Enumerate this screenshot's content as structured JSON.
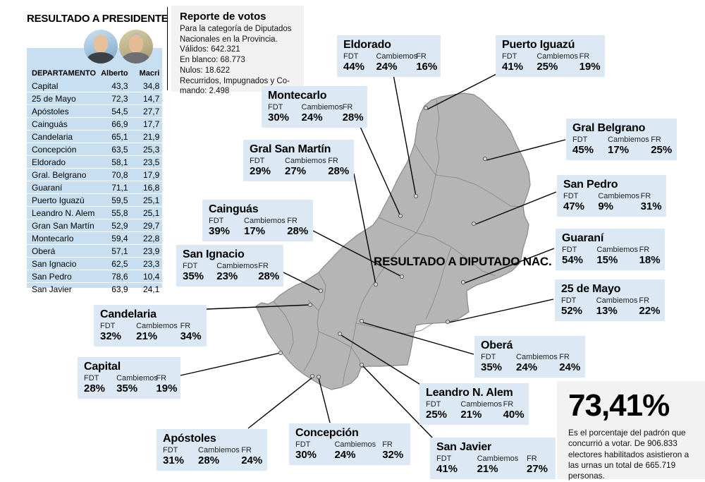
{
  "colors": {
    "table_blue": "#c7dff0",
    "callout_blue": "#dce9f5",
    "gray_box": "#f2f2f2",
    "map_fill": "#b5b5b5",
    "map_border": "#8a8a8a"
  },
  "president_panel": {
    "title": "RESULTADO A PRESIDENTE",
    "table": {
      "headers": [
        "DEPARTAMENTO",
        "Alberto",
        "Macri"
      ],
      "rows": [
        [
          "Capital",
          "43,3",
          "34,8"
        ],
        [
          "25 de Mayo",
          "72,3",
          "14,7"
        ],
        [
          "Apóstoles",
          "54,5",
          "27,7"
        ],
        [
          "Cainguás",
          "66,9",
          "17,7"
        ],
        [
          "Candelaria",
          "65,1",
          "21,9"
        ],
        [
          "Concepción",
          "63,5",
          "25,3"
        ],
        [
          "Eldorado",
          "58,1",
          "23,5"
        ],
        [
          "Gral. Belgrano",
          "70,8",
          "17,9"
        ],
        [
          "Guaraní",
          "71,1",
          "16,8"
        ],
        [
          "Puerto Iguazú",
          "59,5",
          "25,1"
        ],
        [
          "Leandro N. Alem",
          "55,8",
          "25,1"
        ],
        [
          "Gran San Martín",
          "52,9",
          "29,7"
        ],
        [
          "Montecarlo",
          "59,4",
          "22,8"
        ],
        [
          "Oberá",
          "57,1",
          "23,9"
        ],
        [
          "San Ignacio",
          "62,5",
          "23,3"
        ],
        [
          "San Pedro",
          "78,6",
          "10,4"
        ],
        [
          "San Javier",
          "63,9",
          "24,1"
        ]
      ]
    }
  },
  "report_box": {
    "title": "Reporte de votos",
    "lines": [
      "Para la categoría de Diputados",
      "Nacionales en la Provincia.",
      "Válidos: 642.321",
      "En blanco: 68.773",
      "Nulos: 18.622",
      "Recurridos, Impugnados y Co-",
      "mando: 2.498"
    ]
  },
  "map": {
    "center_label": "RESULTADO A DIPUTADO NAC."
  },
  "party_labels": {
    "fdt": "FDT",
    "cambiemos": "Cambiemos",
    "fr": "FR"
  },
  "callouts": {
    "eldorado": {
      "name": "Eldorado",
      "fdt": "44%",
      "cambiemos": "24%",
      "fr": "16%"
    },
    "puerto_iguazu": {
      "name": "Puerto Iguazú",
      "fdt": "41%",
      "cambiemos": "25%",
      "fr": "19%"
    },
    "montecarlo": {
      "name": "Montecarlo",
      "fdt": "30%",
      "cambiemos": "24%",
      "fr": "28%"
    },
    "gral_san_martin": {
      "name": "Gral San Martín",
      "fdt": "29%",
      "cambiemos": "27%",
      "fr": "28%"
    },
    "cainguas": {
      "name": "Cainguás",
      "fdt": "39%",
      "cambiemos": "17%",
      "fr": "28%"
    },
    "san_ignacio": {
      "name": "San Ignacio",
      "fdt": "35%",
      "cambiemos": "23%",
      "fr": "28%"
    },
    "candelaria": {
      "name": "Candelaria",
      "fdt": "32%",
      "cambiemos": "21%",
      "fr": "34%"
    },
    "capital": {
      "name": "Capital",
      "fdt": "28%",
      "cambiemos": "35%",
      "fr": "19%"
    },
    "apostoles": {
      "name": "Apóstoles",
      "fdt": "31%",
      "cambiemos": "28%",
      "fr": "24%"
    },
    "concepcion": {
      "name": "Concepción",
      "fdt": "30%",
      "cambiemos": "24%",
      "fr": "32%"
    },
    "obera": {
      "name": "Oberá",
      "fdt": "35%",
      "cambiemos": "24%",
      "fr": "24%"
    },
    "leandro": {
      "name": "Leandro N. Alem",
      "fdt": "25%",
      "cambiemos": "21%",
      "fr": "40%"
    },
    "san_javier": {
      "name": "San Javier",
      "fdt": "41%",
      "cambiemos": "21%",
      "fr": "27%"
    },
    "gral_belgrano": {
      "name": "Gral Belgrano",
      "fdt": "45%",
      "cambiemos": "17%",
      "fr": "25%"
    },
    "san_pedro": {
      "name": "San Pedro",
      "fdt": "47%",
      "cambiemos": "9%",
      "fr": "31%"
    },
    "guarani": {
      "name": "Guaraní",
      "fdt": "54%",
      "cambiemos": "15%",
      "fr": "18%"
    },
    "mayo25": {
      "name": "25 de Mayo",
      "fdt": "52%",
      "cambiemos": "13%",
      "fr": "22%"
    }
  },
  "turnout": {
    "value": "73,41%",
    "text": "Es el porcentaje del padrón que concurrió a votar. De 906.833 electores habilitados asistieron a las urnas un total de 665.719 personas."
  },
  "chart_data": [
    {
      "type": "table",
      "title": "RESULTADO A PRESIDENTE",
      "columns": [
        "DEPARTAMENTO",
        "Alberto",
        "Macri"
      ],
      "rows": [
        [
          "Capital",
          43.3,
          34.8
        ],
        [
          "25 de Mayo",
          72.3,
          14.7
        ],
        [
          "Apóstoles",
          54.5,
          27.7
        ],
        [
          "Cainguás",
          66.9,
          17.7
        ],
        [
          "Candelaria",
          65.1,
          21.9
        ],
        [
          "Concepción",
          63.5,
          25.3
        ],
        [
          "Eldorado",
          58.1,
          23.5
        ],
        [
          "Gral. Belgrano",
          70.8,
          17.9
        ],
        [
          "Guaraní",
          71.1,
          16.8
        ],
        [
          "Puerto Iguazú",
          59.5,
          25.1
        ],
        [
          "Leandro N. Alem",
          55.8,
          25.1
        ],
        [
          "Gran San Martín",
          52.9,
          29.7
        ],
        [
          "Montecarlo",
          59.4,
          22.8
        ],
        [
          "Oberá",
          57.1,
          23.9
        ],
        [
          "San Ignacio",
          62.5,
          23.3
        ],
        [
          "San Pedro",
          78.6,
          10.4
        ],
        [
          "San Javier",
          63.9,
          24.1
        ]
      ]
    },
    {
      "type": "table",
      "title": "RESULTADO A DIPUTADO NAC.",
      "columns": [
        "Departamento",
        "FDT %",
        "Cambiemos %",
        "FR %"
      ],
      "rows": [
        [
          "Eldorado",
          44,
          24,
          16
        ],
        [
          "Puerto Iguazú",
          41,
          25,
          19
        ],
        [
          "Montecarlo",
          30,
          24,
          28
        ],
        [
          "Gral San Martín",
          29,
          27,
          28
        ],
        [
          "Cainguás",
          39,
          17,
          28
        ],
        [
          "San Ignacio",
          35,
          23,
          28
        ],
        [
          "Candelaria",
          32,
          21,
          34
        ],
        [
          "Capital",
          28,
          35,
          19
        ],
        [
          "Apóstoles",
          31,
          28,
          24
        ],
        [
          "Concepción",
          30,
          24,
          32
        ],
        [
          "Oberá",
          35,
          24,
          24
        ],
        [
          "Leandro N. Alem",
          25,
          21,
          40
        ],
        [
          "San Javier",
          41,
          21,
          27
        ],
        [
          "Gral Belgrano",
          45,
          17,
          25
        ],
        [
          "San Pedro",
          47,
          9,
          31
        ],
        [
          "Guaraní",
          54,
          15,
          18
        ],
        [
          "25 de Mayo",
          52,
          13,
          22
        ]
      ]
    }
  ]
}
